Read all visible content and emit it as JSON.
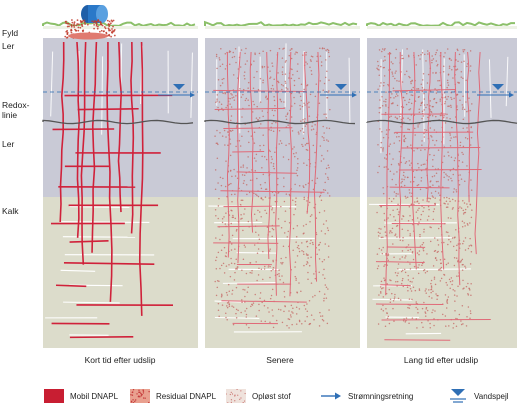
{
  "labels": {
    "fyld": "Fyld",
    "ler_top": "Ler",
    "redox_1": "Redox-",
    "redox_2": "linie",
    "ler_bottom": "Ler",
    "kalk": "Kalk"
  },
  "panels": [
    {
      "caption": "Kort tid efter udslip"
    },
    {
      "caption": "Senere"
    },
    {
      "caption": "Lang tid efter udslip"
    }
  ],
  "legend": [
    {
      "icon": "mobile-dnapl-swatch",
      "label": "Mobil DNAPL"
    },
    {
      "icon": "residual-dnapl-swatch",
      "label": "Residual DNAPL"
    },
    {
      "icon": "dissolved-swatch",
      "label": "Opløst stof"
    },
    {
      "icon": "flow-arrow-icon",
      "label": "Strømningsretning"
    },
    {
      "icon": "water-table-icon",
      "label": "Vandspejl"
    }
  ],
  "colors": {
    "clay": "#c9cad6",
    "limestone": "#dcdccb",
    "fracture_red": "#d0213a",
    "flow_blue": "#2f6fb5",
    "grass": "#8cc06a",
    "drum": "#2a78c8"
  }
}
